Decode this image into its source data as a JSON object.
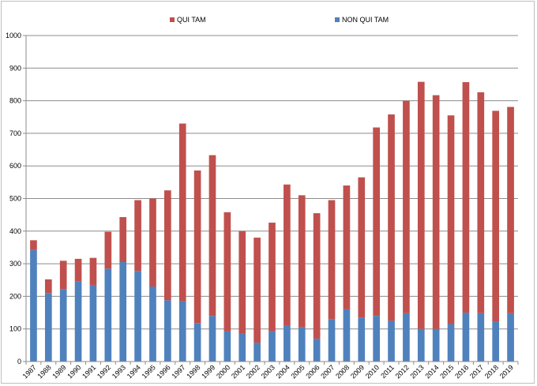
{
  "chart_data": {
    "type": "bar",
    "stacked": true,
    "categories": [
      "1987",
      "1988",
      "1989",
      "1990",
      "1991",
      "1992",
      "1993",
      "1994",
      "1995",
      "1996",
      "1997",
      "1998",
      "1999",
      "2000",
      "2001",
      "2002",
      "2003",
      "2004",
      "2005",
      "2006",
      "2007",
      "2008",
      "2009",
      "2010",
      "2011",
      "2012",
      "2013",
      "2014",
      "2015",
      "2016",
      "2017",
      "2018",
      "2019"
    ],
    "series": [
      {
        "name": "NON QUI TAM",
        "color": "#4f81bd",
        "values": [
          342,
          210,
          222,
          245,
          235,
          285,
          305,
          278,
          230,
          188,
          185,
          118,
          140,
          93,
          85,
          58,
          93,
          110,
          105,
          70,
          130,
          160,
          135,
          140,
          125,
          148,
          100,
          100,
          115,
          150,
          148,
          122,
          148
        ]
      },
      {
        "name": "QUI TAM",
        "color": "#c0504d",
        "values": [
          30,
          42,
          87,
          70,
          83,
          113,
          138,
          217,
          270,
          337,
          545,
          468,
          493,
          365,
          315,
          322,
          333,
          433,
          405,
          385,
          365,
          380,
          430,
          578,
          633,
          652,
          758,
          717,
          640,
          707,
          678,
          647,
          633
        ]
      }
    ],
    "yticks": [
      "0",
      "100",
      "200",
      "300",
      "400",
      "500",
      "600",
      "700",
      "800",
      "900",
      "1000"
    ],
    "ylim": [
      0,
      1000
    ],
    "grid": true,
    "legend_position": "top"
  }
}
